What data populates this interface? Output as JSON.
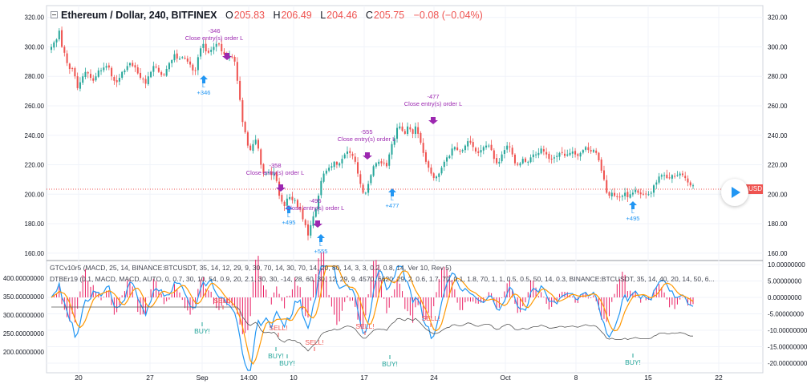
{
  "header": {
    "title": "Ethereum / Dollar, 240, BITFINEX",
    "open_label": "O",
    "open": "205.83",
    "high_label": "H",
    "high": "206.49",
    "low_label": "L",
    "low": "204.46",
    "close_label": "C",
    "close": "205.75",
    "change": "−0.08 (−0.04%)"
  },
  "price_tag": "USD",
  "indicators": {
    "line1": "GTCv10r5 (MACD, 25, 14, BINANCE:BTCUSDT, 35, 14, 12, 29, 9, 30, 70, 14, 30, 70, 14, 20, 80, 14, 3, 3, 0.2, 0.8, 14, Ver 10, Rev 5)",
    "line2": "DTBEr19 (0.1, MACD, MACD, AUTO, 0, 0.7, 30, 10, 54, 0.9, 20, 2.1, 30, 30, -14, 28, 60, 30, 12, 29, 9, 4570, 6620, 29, 2, 0.6, 1.7, 70, 0.1, 1.8, 70, 1, 1, 0.5, 0.5, 50, 14, 0.3, BINANCE:BTCUSDT, 35, 14, 40, 20, 14, 50, 6..."
  },
  "price_axis": [
    "320.00",
    "300.00",
    "280.00",
    "260.00",
    "240.00",
    "220.00",
    "200.00",
    "180.00",
    "160.00"
  ],
  "ind_left_axis": [
    "400.00000000",
    "350.00000000",
    "300.00000000",
    "250.00000000",
    "200.00000000"
  ],
  "ind_right_axis": [
    "10.00000000",
    "5.00000000",
    "0.00000000",
    "-5.00000000",
    "-10.00000000",
    "-15.00000000",
    "-20.00000000"
  ],
  "time_axis": [
    "20",
    "27",
    "Sep",
    "14:00",
    "10",
    "17",
    "24",
    "Oct",
    "8",
    "15",
    "22"
  ],
  "chart_data": {
    "type": "candlestick",
    "price_range": [
      155,
      328
    ],
    "closes": [
      300,
      303,
      305,
      311,
      300,
      296,
      289,
      285,
      285,
      280,
      272,
      276,
      280,
      283,
      282,
      279,
      277,
      280,
      284,
      284,
      286,
      287,
      286,
      280,
      277,
      276,
      279,
      283,
      284,
      287,
      289,
      287,
      286,
      282,
      279,
      278,
      275,
      280,
      283,
      287,
      286,
      283,
      281,
      281,
      285,
      289,
      291,
      295,
      292,
      292,
      293,
      292,
      290,
      288,
      284,
      284,
      293,
      299,
      302,
      297,
      296,
      298,
      300,
      302,
      302,
      297,
      295,
      293,
      294,
      293,
      290,
      277,
      264,
      249,
      242,
      233,
      230,
      234,
      237,
      231,
      220,
      214,
      214,
      215,
      213,
      215,
      209,
      199,
      195,
      192,
      197,
      198,
      196,
      196,
      191,
      190,
      183,
      179,
      172,
      179,
      185,
      190,
      199,
      209,
      214,
      216,
      218,
      219,
      222,
      220,
      221,
      224,
      227,
      229,
      228,
      226,
      222,
      214,
      207,
      201,
      201,
      207,
      213,
      219,
      221,
      222,
      221,
      221,
      219,
      227,
      234,
      238,
      245,
      246,
      243,
      241,
      246,
      244,
      241,
      246,
      241,
      235,
      228,
      222,
      218,
      214,
      211,
      212,
      214,
      218,
      222,
      225,
      226,
      231,
      232,
      230,
      229,
      230,
      233,
      236,
      235,
      232,
      229,
      228,
      230,
      232,
      233,
      233,
      230,
      224,
      221,
      222,
      227,
      230,
      233,
      232,
      227,
      221,
      220,
      221,
      224,
      222,
      222,
      225,
      227,
      227,
      228,
      231,
      229,
      227,
      224,
      224,
      225,
      226,
      228,
      228,
      226,
      227,
      228,
      229,
      227,
      226,
      228,
      230,
      232,
      230,
      229,
      230,
      228,
      223,
      216,
      210,
      201,
      199,
      201,
      199,
      198,
      198,
      199,
      201,
      198,
      200,
      201,
      203,
      201,
      200,
      200,
      200,
      200,
      201,
      206,
      208,
      212,
      213,
      213,
      211,
      211,
      213,
      212,
      213,
      214,
      213,
      211,
      208,
      206,
      206
    ],
    "annotations": [
      {
        "top": "-346",
        "text": "Close entry(s) order L"
      },
      {
        "bottom": "+346",
        "sub": "L"
      },
      {
        "top": "-358",
        "text": "Close entry(s) order L"
      },
      {
        "bottom": "+495",
        "sub": "L"
      },
      {
        "top": "-495",
        "text": "Close entry(s) order L"
      },
      {
        "bottom": "+555",
        "sub": "L"
      },
      {
        "top": "-555",
        "text": "Close entry(s) order L"
      },
      {
        "bottom": "+477",
        "sub": "L"
      },
      {
        "top": "-477",
        "text": "Close entry(s) order L"
      },
      {
        "bottom": "+495",
        "sub": "L"
      }
    ],
    "signals": {
      "buy": "BUY!",
      "sell": "SELL!"
    }
  },
  "colors": {
    "up": "#26a69a",
    "down": "#ef5350",
    "macd": "#2196f3",
    "signal": "#ff9800",
    "hist": "#e91e63",
    "annot": "#9c27b0",
    "long": "#2196f3"
  }
}
